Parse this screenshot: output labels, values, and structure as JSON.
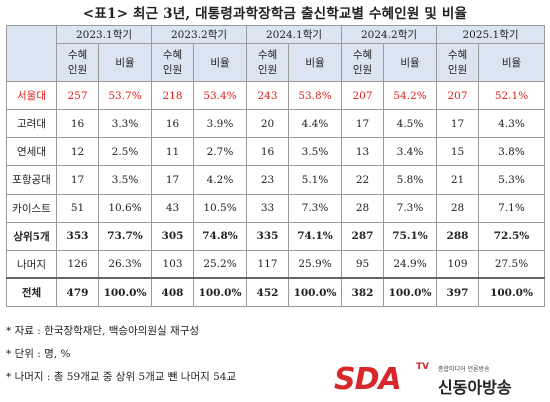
{
  "title": "<표1> 최근 3년, 대통령과학장학금 출신학교별 수혜인원 및 비율",
  "table": {
    "semesters": [
      "2023.1학기",
      "2023.2학기",
      "2024.1학기",
      "2024.2학기",
      "2025.1학기"
    ],
    "sub_count_line1": "수혜",
    "sub_count_line2": "인원",
    "sub_ratio": "비율",
    "rows": [
      [
        "서울대",
        "257",
        "53.7%",
        "218",
        "53.4%",
        "243",
        "53.8%",
        "207",
        "54.2%",
        "207",
        "52.1%"
      ],
      [
        "고려대",
        "16",
        "3.3%",
        "16",
        "3.9%",
        "20",
        "4.4%",
        "17",
        "4.5%",
        "17",
        "4.3%"
      ],
      [
        "연세대",
        "12",
        "2.5%",
        "11",
        "2.7%",
        "16",
        "3.5%",
        "13",
        "3.4%",
        "15",
        "3.8%"
      ],
      [
        "포항공대",
        "17",
        "3.5%",
        "17",
        "4.2%",
        "23",
        "5.1%",
        "22",
        "5.8%",
        "21",
        "5.3%"
      ],
      [
        "카이스트",
        "51",
        "10.6%",
        "43",
        "10.5%",
        "33",
        "7.3%",
        "28",
        "7.3%",
        "28",
        "7.1%"
      ],
      [
        "상위5개",
        "353",
        "73.7%",
        "305",
        "74.8%",
        "335",
        "74.1%",
        "287",
        "75.1%",
        "288",
        "72.5%"
      ],
      [
        "나머지",
        "126",
        "26.3%",
        "103",
        "25.2%",
        "117",
        "25.9%",
        "95",
        "24.9%",
        "109",
        "27.5%"
      ],
      [
        "전체",
        "479",
        "100.0%",
        "408",
        "100.0%",
        "452",
        "100.0%",
        "382",
        "100.0%",
        "397",
        "100.0%"
      ]
    ]
  },
  "notes": [
    "* 자료 : 한국장학재단, 백승아의원실 재구성",
    "* 단위 : 명, %",
    "* 나머지 : 총 59개교 중 상위 5개교 뺀 나머지 54교"
  ],
  "logo": {
    "sda": "SDA",
    "tv": "TV",
    "tagline": "종합미디어 언론방송",
    "brand": "신동아방송"
  },
  "colors": {
    "header_bg": "#dbe5f1",
    "highlight_red": "#e0201b",
    "logo_red": "#d8262b"
  }
}
